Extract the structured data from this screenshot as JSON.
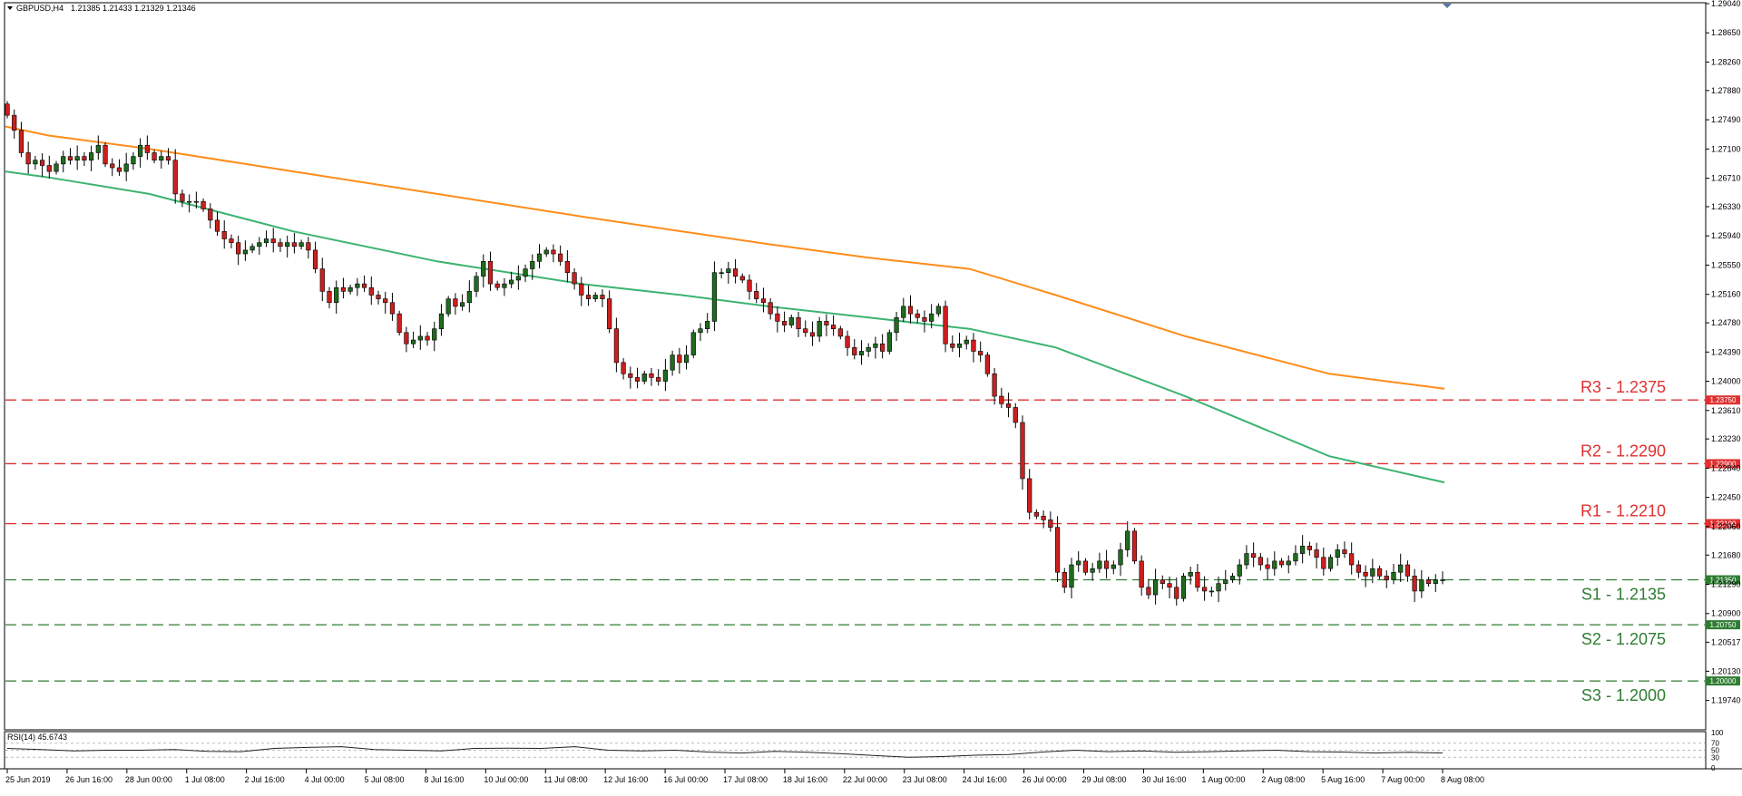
{
  "header": {
    "symbol": "GBPUSD,H4",
    "quote": "1.21385 1.21433 1.21329 1.21346"
  },
  "rsi": {
    "label": "RSI(14) 45.6743",
    "levels": [
      "100",
      "70",
      "50",
      "30",
      "0"
    ]
  },
  "colors": {
    "bull": "#1f6b1f",
    "bear": "#cc1f1f",
    "ma_fast": "#3cb371",
    "ma_slow": "#ff8c1a",
    "resistance": "#e03030",
    "support": "#2e7d32"
  },
  "levels": [
    {
      "id": "r3",
      "label": "R3 - 1.2375",
      "tag": "1.23750",
      "price": 1.2375,
      "kind": "resistance"
    },
    {
      "id": "r2",
      "label": "R2 - 1.2290",
      "tag": "1.22900",
      "price": 1.229,
      "kind": "resistance"
    },
    {
      "id": "r1",
      "label": "R1 - 1.2210",
      "tag": "1.22100",
      "price": 1.221,
      "kind": "resistance"
    },
    {
      "id": "s1",
      "label": "S1 - 1.2135",
      "tag": "1.21350",
      "price": 1.2135,
      "kind": "support"
    },
    {
      "id": "s2",
      "label": "S2 - 1.2075",
      "tag": "1.20750",
      "price": 1.2075,
      "kind": "support"
    },
    {
      "id": "s3",
      "label": "S3 - 1.2000",
      "tag": "1.20000",
      "price": 1.2,
      "kind": "support"
    }
  ],
  "chart_data": {
    "type": "candlestick",
    "title": "GBPUSD,H4",
    "ylim": [
      1.1936,
      1.2904
    ],
    "y_ticks": [
      "1.29040",
      "1.28650",
      "1.28260",
      "1.27880",
      "1.27490",
      "1.27100",
      "1.26710",
      "1.26330",
      "1.25940",
      "1.25550",
      "1.25160",
      "1.24780",
      "1.24390",
      "1.24000",
      "1.23610",
      "1.23230",
      "1.22840",
      "1.22450",
      "1.22060",
      "1.21680",
      "1.21290",
      "1.20900",
      "1.20517",
      "1.20130",
      "1.19740"
    ],
    "x_ticks": [
      "25 Jun 2019",
      "26 Jun 16:00",
      "28 Jun 00:00",
      "1 Jul 08:00",
      "2 Jul 16:00",
      "4 Jul 00:00",
      "5 Jul 08:00",
      "8 Jul 16:00",
      "10 Jul 00:00",
      "11 Jul 08:00",
      "12 Jul 16:00",
      "16 Jul 00:00",
      "17 Jul 08:00",
      "18 Jul 16:00",
      "22 Jul 00:00",
      "23 Jul 08:00",
      "24 Jul 16:00",
      "26 Jul 00:00",
      "29 Jul 08:00",
      "30 Jul 16:00",
      "1 Aug 00:00",
      "2 Aug 08:00",
      "5 Aug 16:00",
      "7 Aug 00:00",
      "8 Aug 08:00"
    ],
    "closes": [
      1.2755,
      1.2735,
      1.2705,
      1.269,
      1.2695,
      1.2688,
      1.268,
      1.269,
      1.27,
      1.2695,
      1.27,
      1.2695,
      1.2705,
      1.2715,
      1.269,
      1.2685,
      1.268,
      1.269,
      1.27,
      1.2715,
      1.2705,
      1.2695,
      1.27,
      1.2695,
      1.265,
      1.264,
      1.264,
      1.264,
      1.263,
      1.2615,
      1.26,
      1.259,
      1.2585,
      1.257,
      1.2575,
      1.258,
      1.2585,
      1.259,
      1.2585,
      1.258,
      1.2585,
      1.258,
      1.2585,
      1.2575,
      1.255,
      1.252,
      1.2505,
      1.2525,
      1.252,
      1.2525,
      1.253,
      1.2525,
      1.2515,
      1.251,
      1.2505,
      1.249,
      1.2465,
      1.245,
      1.2455,
      1.246,
      1.2455,
      1.247,
      1.249,
      1.251,
      1.25,
      1.2505,
      1.252,
      1.254,
      1.256,
      1.253,
      1.2525,
      1.253,
      1.2535,
      1.254,
      1.255,
      1.256,
      1.257,
      1.2575,
      1.257,
      1.256,
      1.2545,
      1.253,
      1.2515,
      1.251,
      1.2515,
      1.251,
      1.247,
      1.2425,
      1.241,
      1.2405,
      1.24,
      1.241,
      1.2405,
      1.24,
      1.2415,
      1.2435,
      1.2425,
      1.2435,
      1.2465,
      1.247,
      1.248,
      1.2545,
      1.2545,
      1.255,
      1.254,
      1.2535,
      1.252,
      1.251,
      1.2505,
      1.249,
      1.248,
      1.2475,
      1.2485,
      1.247,
      1.2465,
      1.246,
      1.248,
      1.2475,
      1.247,
      1.246,
      1.2445,
      1.2435,
      1.244,
      1.2445,
      1.245,
      1.244,
      1.2465,
      1.2485,
      1.25,
      1.249,
      1.2485,
      1.248,
      1.249,
      1.25,
      1.245,
      1.2445,
      1.245,
      1.2455,
      1.244,
      1.2435,
      1.241,
      1.238,
      1.237,
      1.2365,
      1.2345,
      1.227,
      1.2225,
      1.222,
      1.2215,
      1.2205,
      1.2145,
      1.2125,
      1.2155,
      1.216,
      1.2145,
      1.215,
      1.216,
      1.215,
      1.2155,
      1.2175,
      1.22,
      1.216,
      1.2125,
      1.2115,
      1.2135,
      1.213,
      1.2125,
      1.211,
      1.214,
      1.2145,
      1.2125,
      1.212,
      1.212,
      1.213,
      1.2135,
      1.214,
      1.2155,
      1.217,
      1.2165,
      1.2155,
      1.215,
      1.216,
      1.2155,
      1.216,
      1.217,
      1.218,
      1.2175,
      1.2165,
      1.215,
      1.2165,
      1.2175,
      1.217,
      1.2155,
      1.2145,
      1.214,
      1.215,
      1.214,
      1.2135,
      1.2145,
      1.2155,
      1.214,
      1.212,
      1.2135,
      1.213,
      1.2135,
      1.2135
    ],
    "ma_fast": [
      1.268,
      1.2672,
      1.265,
      1.26,
      1.256,
      1.253,
      1.2515,
      1.25,
      1.2485,
      1.247,
      1.2445,
      1.238,
      1.23,
      1.2265
    ],
    "ma_slow": [
      1.274,
      1.2728,
      1.271,
      1.268,
      1.265,
      1.262,
      1.26,
      1.2583,
      1.2565,
      1.255,
      1.2515,
      1.246,
      1.241,
      1.239
    ],
    "ma_x": [
      0.0,
      0.03,
      0.1,
      0.2,
      0.3,
      0.4,
      0.47,
      0.53,
      0.6,
      0.67,
      0.73,
      0.82,
      0.92,
      1.0
    ],
    "rsi_values": [
      55,
      52,
      48,
      50,
      50,
      52,
      47,
      46,
      55,
      58,
      60,
      52,
      50,
      48,
      55,
      56,
      55,
      60,
      50,
      48,
      50,
      45,
      42,
      47,
      44,
      40,
      35,
      30,
      32,
      36,
      38,
      45,
      50,
      46,
      48,
      44,
      46,
      48,
      50,
      46,
      45,
      42,
      44,
      42
    ]
  }
}
